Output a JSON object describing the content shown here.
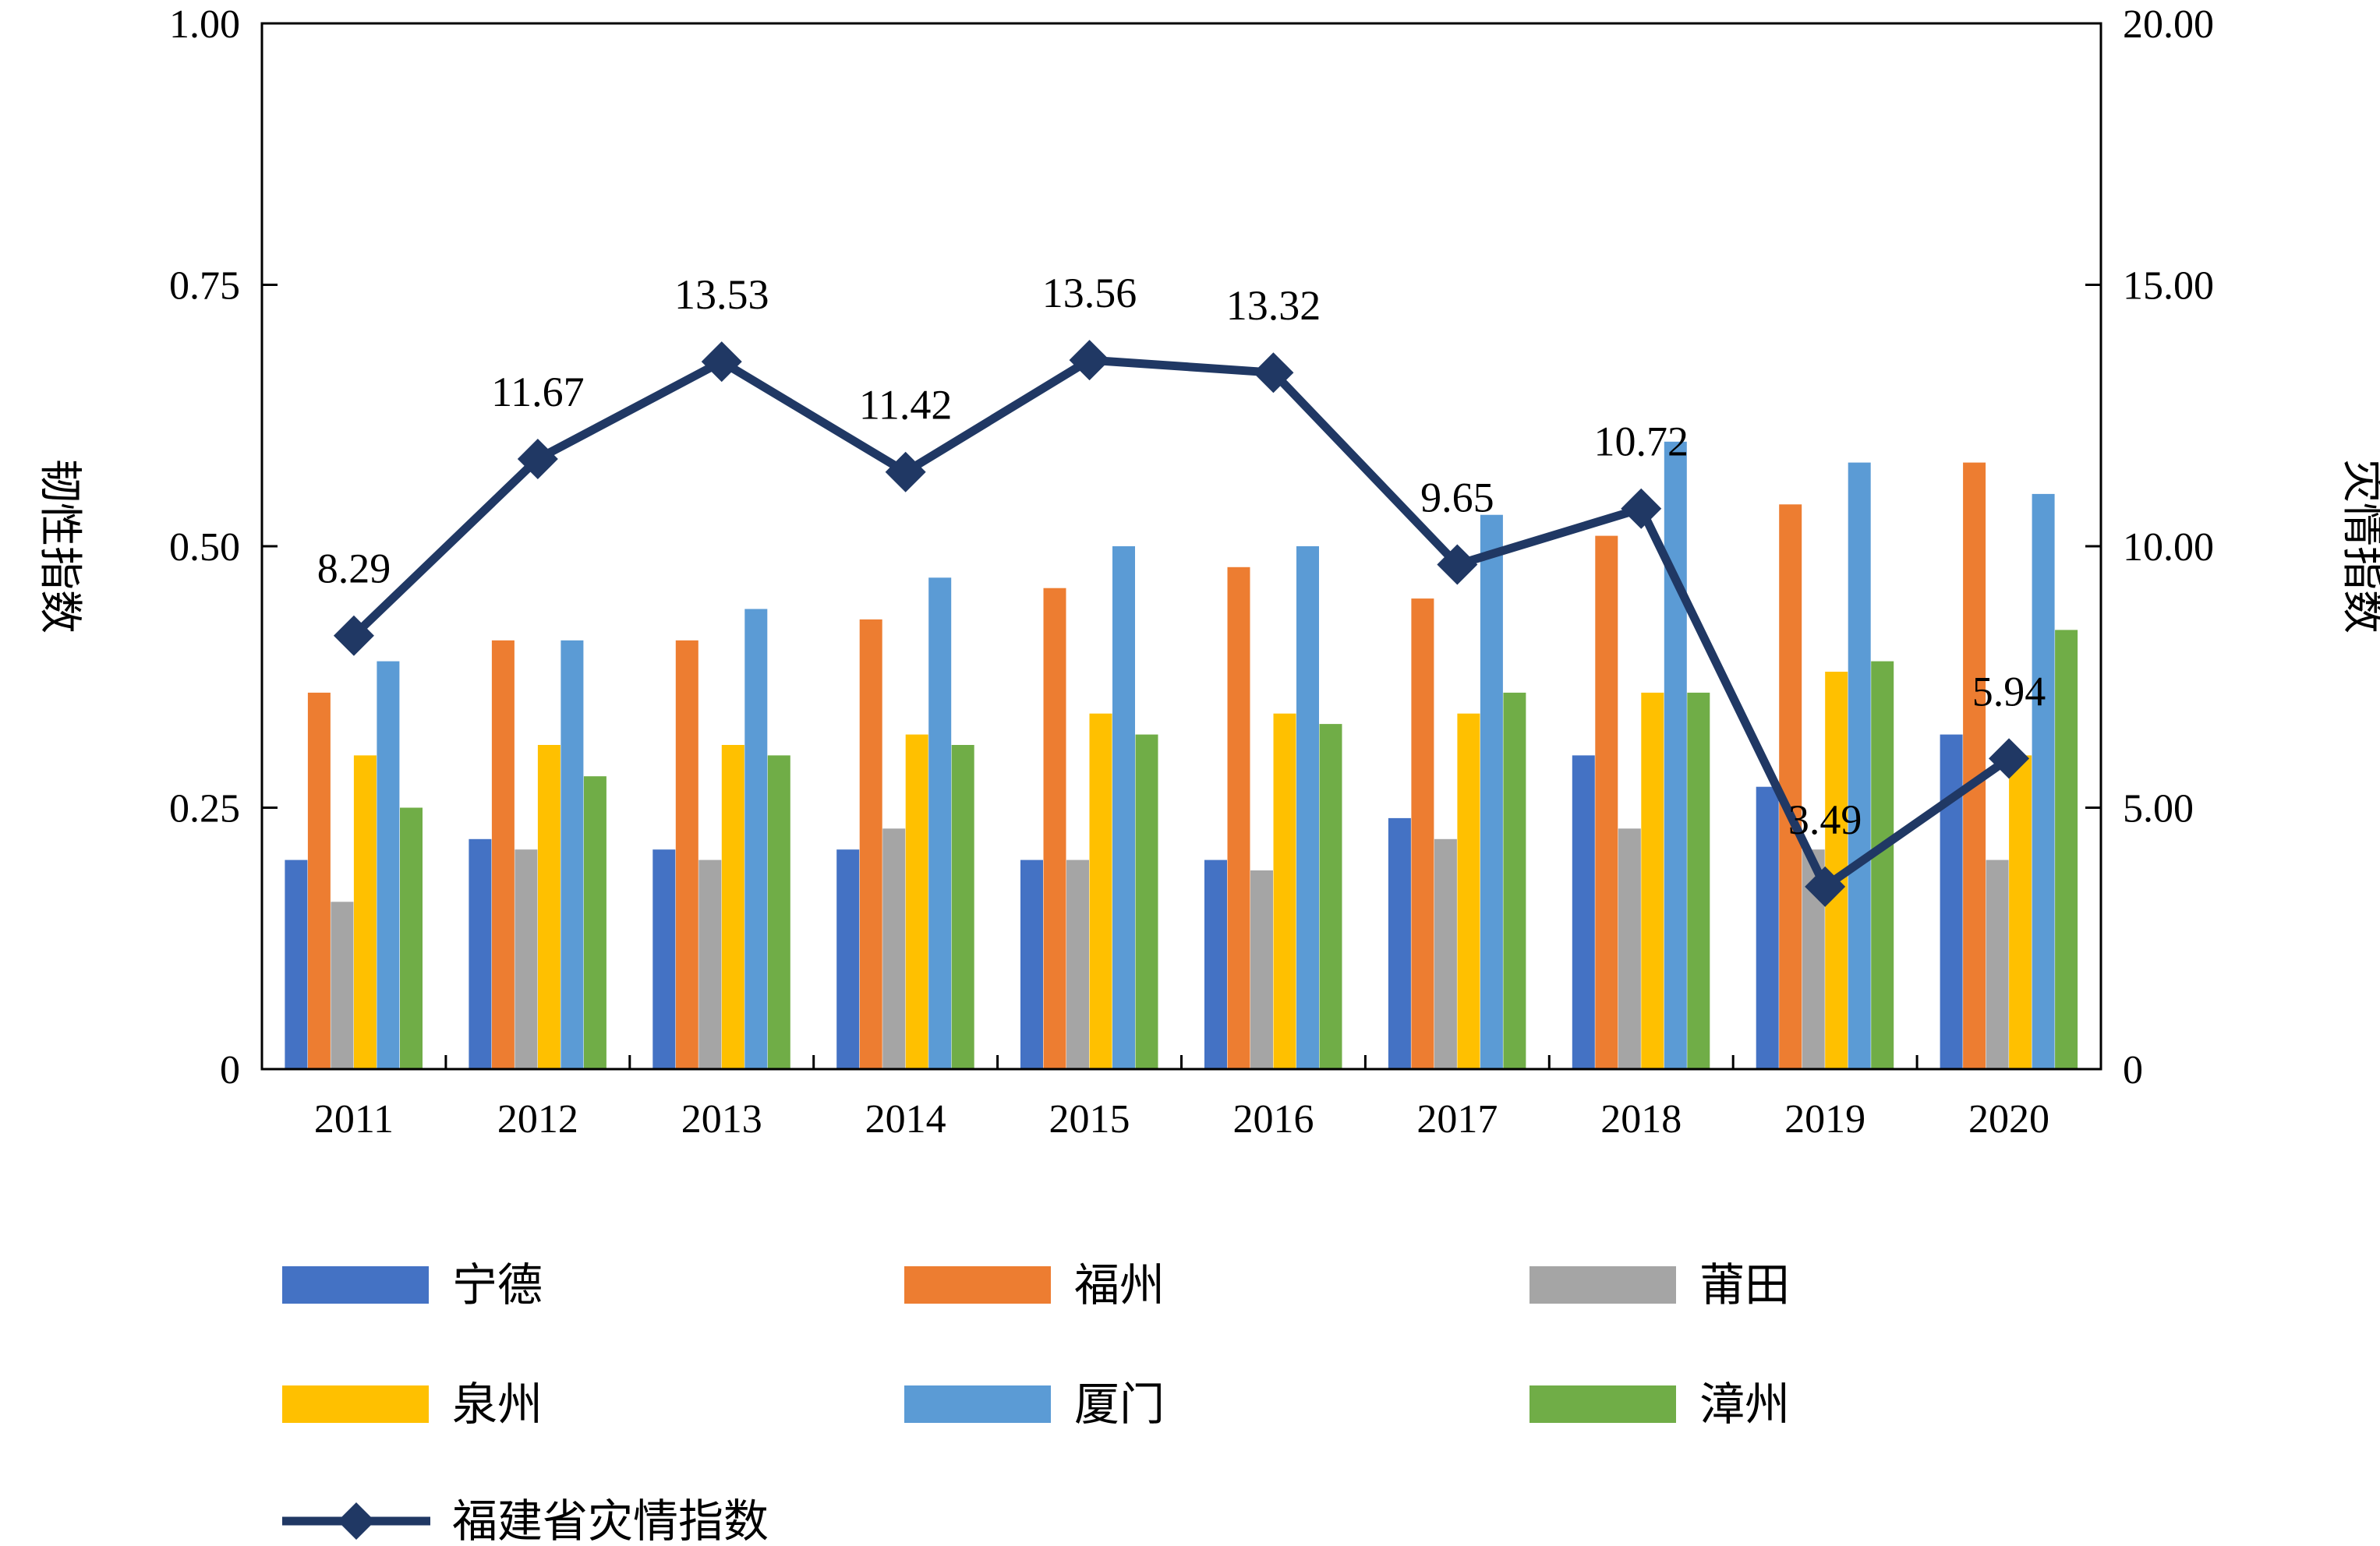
{
  "chart_data": {
    "type": "bar",
    "categories": [
      "2011",
      "2012",
      "2013",
      "2014",
      "2015",
      "2016",
      "2017",
      "2018",
      "2019",
      "2020"
    ],
    "left_axis": {
      "label": "韧性指数",
      "ylim": [
        0,
        1.0
      ],
      "ticks": [
        0,
        0.25,
        0.5,
        0.75,
        1.0
      ],
      "tick_labels": [
        "0",
        "0.25",
        "0.50",
        "0.75",
        "1.00"
      ]
    },
    "right_axis": {
      "label": "灾情指数",
      "ylim": [
        0,
        20
      ],
      "ticks": [
        0,
        5,
        10,
        15,
        20
      ],
      "tick_labels": [
        "0",
        "5.00",
        "10.00",
        "15.00",
        "20.00"
      ]
    },
    "series": [
      {
        "name": "宁德",
        "color": "#4472C4",
        "values": [
          0.2,
          0.22,
          0.21,
          0.21,
          0.2,
          0.2,
          0.24,
          0.3,
          0.27,
          0.32
        ]
      },
      {
        "name": "福州",
        "color": "#ED7D31",
        "values": [
          0.36,
          0.41,
          0.41,
          0.43,
          0.46,
          0.48,
          0.45,
          0.51,
          0.54,
          0.58
        ]
      },
      {
        "name": "莆田",
        "color": "#A5A5A5",
        "values": [
          0.16,
          0.21,
          0.2,
          0.23,
          0.2,
          0.19,
          0.22,
          0.23,
          0.21,
          0.2
        ]
      },
      {
        "name": "泉州",
        "color": "#FFC000",
        "values": [
          0.3,
          0.31,
          0.31,
          0.32,
          0.34,
          0.34,
          0.34,
          0.36,
          0.38,
          0.3
        ]
      },
      {
        "name": "厦门",
        "color": "#5B9BD5",
        "values": [
          0.39,
          0.41,
          0.44,
          0.47,
          0.5,
          0.5,
          0.53,
          0.6,
          0.58,
          0.55
        ]
      },
      {
        "name": "漳州",
        "color": "#70AD47",
        "values": [
          0.25,
          0.28,
          0.3,
          0.31,
          0.32,
          0.33,
          0.36,
          0.36,
          0.39,
          0.42
        ]
      }
    ],
    "line_series": {
      "name": "福建省灾情指数",
      "color": "#203864",
      "axis": "right",
      "values": [
        8.29,
        11.67,
        13.53,
        11.42,
        13.56,
        13.32,
        9.65,
        10.72,
        3.49,
        5.94
      ],
      "labels": [
        "8.29",
        "11.67",
        "13.53",
        "11.42",
        "13.56",
        "13.32",
        "9.65",
        "10.72",
        "3.49",
        "5.94"
      ]
    },
    "legend_position": "bottom",
    "grid": false
  }
}
